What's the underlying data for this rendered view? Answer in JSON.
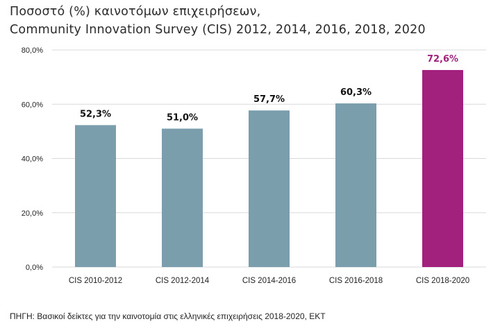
{
  "chart_data": {
    "type": "bar",
    "title": "Ποσοστό (%) καινοτόμων επιχειρήσεων,",
    "subtitle": "Community Innovation Survey (CIS) 2012, 2014, 2016, 2018, 2020",
    "categories": [
      "CIS 2010-2012",
      "CIS 2012-2014",
      "CIS 2014-2016",
      "CIS 2016-2018",
      "CIS 2018-2020"
    ],
    "values": [
      52.3,
      51.0,
      57.7,
      60.3,
      72.6
    ],
    "value_labels": [
      "52,3%",
      "51,0%",
      "57,7%",
      "60,3%",
      "72,6%"
    ],
    "ylim": [
      0,
      80
    ],
    "yticks": [
      0,
      20,
      40,
      60,
      80
    ],
    "ytick_labels": [
      "0,0%",
      "20,0%",
      "40,0%",
      "60,0%",
      "80,0%"
    ],
    "xlabel": "",
    "ylabel": "",
    "grid": true,
    "colors": {
      "default_bar": "#7a9eab",
      "highlight_bar": "#a1217c",
      "highlight_label": "#a1217c",
      "label": "#111111",
      "grid": "#d9d9d9"
    },
    "highlight_index": 4
  },
  "source": "ΠΗΓΗ: Βασικοί δείκτες για την καινοτομία στις ελληνικές επιχειρήσεις 2018-2020, ΕΚΤ"
}
